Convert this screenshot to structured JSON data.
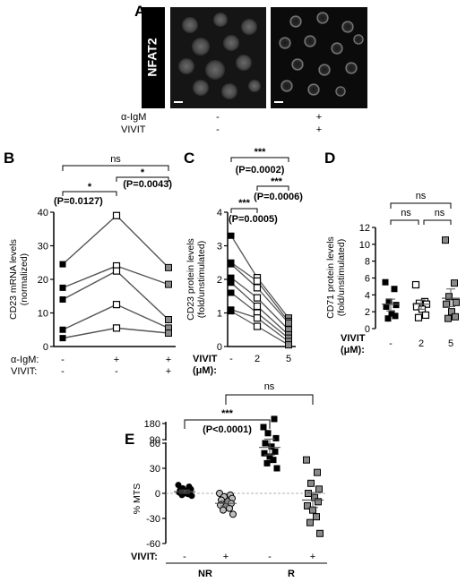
{
  "panel_a": {
    "letter": "A",
    "stain_label": "NFAT2",
    "row_labels": [
      "α-IgM",
      "VIVIT"
    ],
    "conditions": [
      {
        "igm": "-",
        "vivit": "-"
      },
      {
        "igm": "+",
        "vivit": "+"
      }
    ]
  },
  "chart_data": [
    {
      "id": "B",
      "type": "line",
      "panel_letter": "B",
      "ylabel": "CD23 mRNA levels (normalized)",
      "ylabel_lines": [
        "CD23 mRNA levels",
        "(normalized)"
      ],
      "ylim": [
        0,
        40
      ],
      "yticks": [
        "0",
        "10",
        "20",
        "30",
        "40"
      ],
      "ytick_values": [
        0,
        10,
        20,
        30,
        40
      ],
      "condition_rows": [
        {
          "label": "α-IgM:",
          "values": [
            "-",
            "+",
            "+"
          ]
        },
        {
          "label": "VIVIT:",
          "values": [
            "-",
            "-",
            "+"
          ]
        }
      ],
      "series": [
        {
          "values": [
            24.5,
            39,
            23.5
          ]
        },
        {
          "values": [
            17.5,
            24,
            18.5
          ]
        },
        {
          "values": [
            14,
            22.5,
            8
          ]
        },
        {
          "values": [
            5,
            12.5,
            5.5
          ]
        },
        {
          "values": [
            2.5,
            5.5,
            4
          ]
        }
      ],
      "significance": [
        {
          "label": "ns",
          "from": 0,
          "to": 2
        },
        {
          "label": "*",
          "from": 1,
          "to": 2,
          "pvalue": "(P=0.0043)"
        },
        {
          "label": "*",
          "from": 0,
          "to": 1,
          "pvalue": "(P=0.0127)"
        }
      ]
    },
    {
      "id": "C",
      "type": "line",
      "panel_letter": "C",
      "ylabel": "CD23 protein levels (fold/unstimulated)",
      "ylabel_lines": [
        "CD23 protein levels",
        "(fold/unstimulated)"
      ],
      "ylim": [
        0,
        4
      ],
      "yticks": [
        "0",
        "1",
        "2",
        "3",
        "4"
      ],
      "ytick_values": [
        0,
        1,
        2,
        3,
        4
      ],
      "condition_rows": [
        {
          "label": "VIVIT",
          "values": [
            "-",
            "2",
            "5"
          ]
        },
        {
          "label": "(μM):",
          "values": [
            "",
            "",
            ""
          ]
        }
      ],
      "series": [
        {
          "values": [
            3.3,
            2.05,
            0.85
          ]
        },
        {
          "values": [
            2.5,
            1.95,
            0.75
          ]
        },
        {
          "values": [
            2.45,
            1.75,
            0.7
          ]
        },
        {
          "values": [
            2.05,
            1.45,
            0.5
          ]
        },
        {
          "values": [
            1.9,
            1.2,
            0.35
          ]
        },
        {
          "values": [
            1.6,
            1.0,
            0.25
          ]
        },
        {
          "values": [
            1.1,
            0.85,
            0.15
          ]
        },
        {
          "values": [
            1.05,
            0.6,
            0.05
          ]
        }
      ],
      "significance": [
        {
          "label": "***",
          "from": 0,
          "to": 2,
          "pvalue": "(P=0.0002)"
        },
        {
          "label": "***",
          "from": 1,
          "to": 2,
          "pvalue": "(P=0.0006)"
        },
        {
          "label": "***",
          "from": 0,
          "to": 1,
          "pvalue": "(P=0.0005)"
        }
      ]
    },
    {
      "id": "D",
      "type": "scatter",
      "panel_letter": "D",
      "ylabel": "CD71 protein levels (fold/unstimulated)",
      "ylabel_lines": [
        "CD71 protein levels",
        "(fold/unstimulated)"
      ],
      "ylim": [
        0,
        12
      ],
      "yticks": [
        "0",
        "2",
        "4",
        "6",
        "8",
        "10",
        "12"
      ],
      "ytick_values": [
        0,
        2,
        4,
        6,
        8,
        10,
        12
      ],
      "condition_rows": [
        {
          "label": "VIVIT",
          "values": [
            "-",
            "2",
            "5"
          ]
        },
        {
          "label": "(μM):",
          "values": [
            "",
            "",
            ""
          ]
        }
      ],
      "groups": [
        {
          "values": [
            5.5,
            4.7,
            3.2,
            2.8,
            2.6,
            1.8,
            1.5,
            1.2
          ],
          "mean": 2.9,
          "sem_low": 2.1,
          "sem_high": 3.5
        },
        {
          "values": [
            5.2,
            3.2,
            3.0,
            2.9,
            2.6,
            2.3,
            1.6,
            1.3
          ],
          "mean": 2.9,
          "sem_low": 2.3,
          "sem_high": 3.4
        },
        {
          "values": [
            10.5,
            5.4,
            3.8,
            3.1,
            2.9,
            2.0,
            1.4,
            1.2
          ],
          "mean": 3.6,
          "sem_low": 2.6,
          "sem_high": 4.7
        }
      ],
      "significance": [
        {
          "label": "ns",
          "from": 0,
          "to": 2
        },
        {
          "label": "ns",
          "from": 0,
          "to": 1
        },
        {
          "label": "ns",
          "from": 1,
          "to": 2
        }
      ]
    },
    {
      "id": "E",
      "type": "scatter",
      "panel_letter": "E",
      "ylabel": "% MTS",
      "ylim": [
        -60,
        180
      ],
      "axis_break": [
        90,
        180
      ],
      "yticks": [
        "180",
        "90",
        "60",
        "30",
        "0",
        "-30",
        "-60"
      ],
      "ytick_values": [
        180,
        90,
        60,
        30,
        0,
        -30,
        -60
      ],
      "condition_rows": [
        {
          "label": "VIVIT:",
          "values": [
            "-",
            "+",
            "-",
            "+"
          ]
        }
      ],
      "group_labels": [
        {
          "label": "NR",
          "from": 0,
          "to": 1
        },
        {
          "label": "R",
          "from": 2,
          "to": 3
        }
      ],
      "groups": [
        {
          "values": [
            10,
            8,
            6,
            5,
            4,
            3,
            2,
            1,
            0,
            -1,
            -2,
            -3
          ],
          "mean": 2,
          "sem_low": 0,
          "sem_high": 4
        },
        {
          "values": [
            0,
            -2,
            -4,
            -6,
            -8,
            -10,
            -12,
            -14,
            -16,
            -18,
            -20,
            -25
          ],
          "mean": -12,
          "sem_low": -15,
          "sem_high": -9
        },
        {
          "values": [
            160,
            89,
            72,
            66,
            60,
            56,
            50,
            48,
            44,
            40,
            36,
            30
          ],
          "mean": 55,
          "sem_low": 46,
          "sem_high": 65
        },
        {
          "values": [
            40,
            25,
            12,
            5,
            0,
            -5,
            -10,
            -15,
            -20,
            -28,
            -35,
            -48
          ],
          "mean": -8,
          "sem_low": -17,
          "sem_high": 1
        }
      ],
      "significance": [
        {
          "label": "ns",
          "from": 1,
          "to": 3
        },
        {
          "label": "***",
          "from": 0,
          "to": 2,
          "pvalue": "(P<0.0001)"
        }
      ]
    }
  ]
}
